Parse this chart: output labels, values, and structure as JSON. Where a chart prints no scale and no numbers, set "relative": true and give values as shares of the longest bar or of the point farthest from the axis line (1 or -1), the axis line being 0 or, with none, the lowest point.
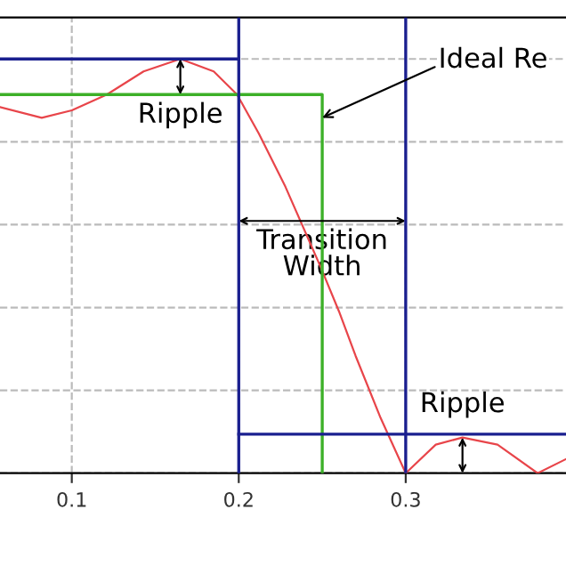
{
  "chart_data": {
    "type": "line",
    "relative": true,
    "xlim": [
      0.057,
      0.396
    ],
    "xticks": [
      0.1,
      0.2,
      0.3
    ],
    "grid": true,
    "marker": "none",
    "line_style": "solid",
    "series": [
      {
        "color": "#e8454a",
        "x": [
          0.057,
          0.082,
          0.1,
          0.121,
          0.143,
          0.165,
          0.185,
          0.199,
          0.212,
          0.228,
          0.249,
          0.26,
          0.27,
          0.285,
          0.3,
          0.318,
          0.334,
          0.355,
          0.379,
          0.396
        ],
        "values": [
          0.884,
          0.858,
          0.876,
          0.914,
          0.97,
          1,
          0.97,
          0.914,
          0.82,
          0.691,
          0.498,
          0.391,
          0.283,
          0.133,
          0,
          0.069,
          0.086,
          0.069,
          0,
          0.034
        ]
      },
      {
        "color": "#3cb028",
        "x": [
          0.057,
          0.25,
          0.25
        ],
        "values": [
          0.914,
          0.914,
          0
        ]
      },
      {
        "color": "#1a1f8f",
        "x": [
          0.057,
          0.2
        ],
        "values": [
          1,
          1
        ]
      },
      {
        "color": "#1a1f8f",
        "x": [
          0.2,
          0.396
        ],
        "values": [
          0.094,
          0.094
        ]
      }
    ],
    "ref_lines": [
      {
        "axis": "x",
        "value": 0.2,
        "color": "#1a1f8f"
      },
      {
        "axis": "x",
        "value": 0.3,
        "color": "#1a1f8f"
      }
    ],
    "annotations": [
      {
        "text": "Ripple",
        "x": 0.165,
        "y": 0.914
      },
      {
        "text": "Ideal Re",
        "x": 0.25,
        "y": 0.858
      },
      {
        "text": "Transition\nWidth",
        "x": 0.25,
        "y": 0.609
      },
      {
        "text": "Ripple",
        "x": 0.334,
        "y": 0.086
      }
    ]
  }
}
